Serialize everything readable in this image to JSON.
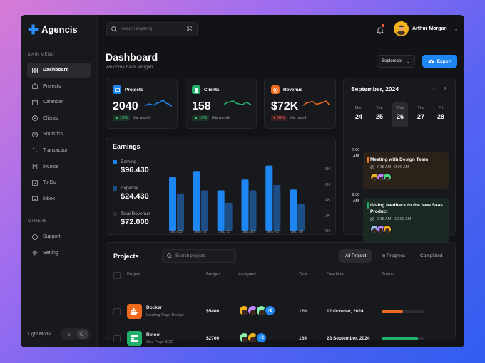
{
  "app": {
    "name": "Agencis"
  },
  "sidebar": {
    "main_label": "MAIN MENU",
    "items": [
      {
        "label": "Dashboard",
        "icon": "grid-icon"
      },
      {
        "label": "Projects",
        "icon": "briefcase-icon"
      },
      {
        "label": "Calendar",
        "icon": "calendar-icon"
      },
      {
        "label": "Clients",
        "icon": "user-icon"
      },
      {
        "label": "Statistics",
        "icon": "pie-chart-icon"
      },
      {
        "label": "Transaction",
        "icon": "transfer-icon"
      },
      {
        "label": "Invoice",
        "icon": "invoice-icon"
      },
      {
        "label": "To-Do",
        "icon": "checklist-icon"
      },
      {
        "label": "Inbox",
        "icon": "inbox-icon"
      }
    ],
    "others_label": "OTHERS",
    "others": [
      {
        "label": "Support",
        "icon": "help-icon"
      },
      {
        "label": "Setting",
        "icon": "gear-icon"
      }
    ],
    "light_mode_label": "Light Mode"
  },
  "topbar": {
    "search_placeholder": "Search anything",
    "user_name": "Arthur Morgan"
  },
  "header": {
    "title": "Dashboard",
    "subtitle": "Welcome back Morgan",
    "month": "September",
    "export_label": "Export"
  },
  "stats": [
    {
      "title": "Projects",
      "value": "2040",
      "change": "13%",
      "direction": "up",
      "period": "this month",
      "color": "#1d86f2",
      "spark_color": "#1d86f2",
      "trend": [
        0.4,
        0.55,
        0.45,
        0.7,
        0.9,
        0.6,
        0.35
      ]
    },
    {
      "title": "Clients",
      "value": "158",
      "change": "16%",
      "direction": "up",
      "period": "this month",
      "color": "#22b06b",
      "spark_color": "#22b06b",
      "trend": [
        0.55,
        0.75,
        0.85,
        0.6,
        0.5,
        0.7,
        0.5
      ]
    },
    {
      "title": "Revenue",
      "value": "$72K",
      "change": "06%",
      "direction": "down",
      "period": "this month",
      "color": "#f06a1d",
      "spark_color": "#f06a1d",
      "trend": [
        0.45,
        0.7,
        0.8,
        0.55,
        0.65,
        0.85,
        0.45
      ]
    }
  ],
  "earnings": {
    "title": "Earnings",
    "legend": [
      {
        "label": "Earning",
        "value": "$96.430",
        "color": "#1d86f2"
      },
      {
        "label": "Expense",
        "value": "$24.430",
        "color": "#1d4f86"
      },
      {
        "label": "Total Revenue",
        "value": "$72.000",
        "color": "#2d2e33"
      }
    ]
  },
  "chart_data": {
    "type": "bar",
    "categories": [
      "Sep 05",
      "Sep 10",
      "Sep 15",
      "Sep 20",
      "Sep 25",
      "Sep 30"
    ],
    "series": [
      {
        "name": "Earning",
        "values": [
          6900,
          7700,
          5200,
          6600,
          8400,
          5300
        ]
      },
      {
        "name": "Expense",
        "values": [
          4800,
          5200,
          3600,
          5200,
          5900,
          3400
        ]
      }
    ],
    "y_ticks": [
      "8K",
      "6K",
      "4K",
      "2K",
      "0K"
    ],
    "ylim": [
      0,
      8000
    ]
  },
  "calendar": {
    "title": "September, 2024",
    "days": [
      {
        "name": "Mon",
        "date": "24"
      },
      {
        "name": "Tue",
        "date": "25"
      },
      {
        "name": "Wed",
        "date": "26"
      },
      {
        "name": "Thu",
        "date": "27"
      },
      {
        "name": "Fri",
        "date": "28"
      }
    ],
    "active_day": 2,
    "times": [
      {
        "time": "7:00",
        "ampm": "AM"
      },
      {
        "time": "9:00",
        "ampm": "AM"
      }
    ],
    "events": [
      {
        "title": "Meeting with Design Team",
        "time": "7:15 AM - 9:00 AM",
        "color": "#f07a1d",
        "bg": "#2a2119"
      },
      {
        "title": "Giving feedback to the New Saas Product",
        "time": "9:15 AM - 10:00 AM",
        "color": "#22b06b",
        "bg": "#1a2a22"
      }
    ]
  },
  "projects": {
    "title": "Projects",
    "search_placeholder": "Search projects",
    "tabs": [
      "All Project",
      "In Progress",
      "Completed"
    ],
    "columns": [
      "Project",
      "Budget",
      "Assigned",
      "Task",
      "Deadline",
      "Status"
    ],
    "rows": [
      {
        "name": "Docker",
        "desc": "Landing Page Design",
        "budget": "$5400",
        "more": "+8",
        "task": "120",
        "deadline": "12 October, 2024",
        "status": 0.5,
        "status_color": "#f06a1d",
        "icon_bg": "#f06a1d"
      },
      {
        "name": "Retool",
        "desc": "One Page SEO",
        "budget": "$2700",
        "more": "+2",
        "task": "169",
        "deadline": "28 September, 2024",
        "status": 0.85,
        "status_color": "#22b06b",
        "icon_bg": "#22b06b"
      }
    ]
  }
}
